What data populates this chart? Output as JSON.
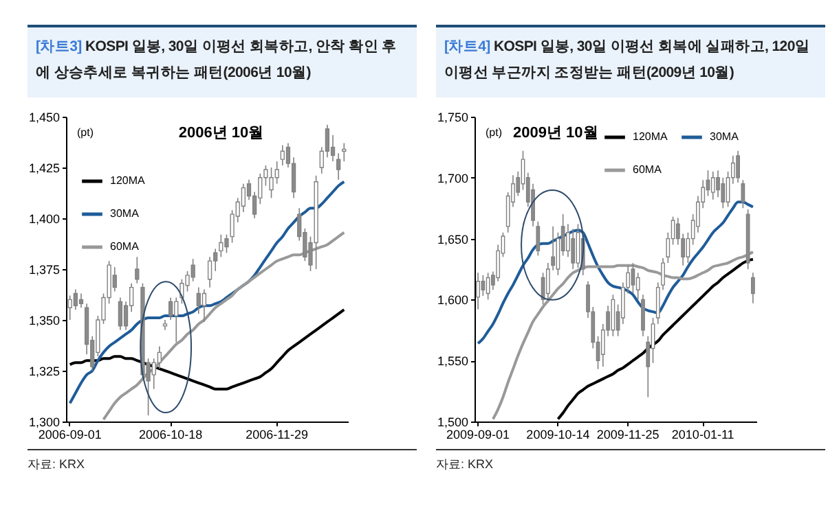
{
  "chart_data": [
    {
      "type": "candlestick",
      "title": "[차트3] KOSPI 일봉, 30일 이평선 회복하고, 안착 확인 후에 상승추세로 복귀하는 패턴(2006년 10월)",
      "ylabel": "(pt)",
      "annotations": [
        "2006년 10월",
        "자료: KRX"
      ],
      "legend": "top left",
      "ylim": [
        1300,
        1450
      ],
      "yticks": [
        {
          "value": 1300,
          "label": "1,300"
        },
        {
          "value": 1325,
          "label": "1,325"
        },
        {
          "value": 1350,
          "label": "1,350"
        },
        {
          "value": 1375,
          "label": "1,375"
        },
        {
          "value": 1400,
          "label": "1,400"
        },
        {
          "value": 1425,
          "label": "1,425"
        },
        {
          "value": 1450,
          "label": "1,450"
        }
      ],
      "categories": [
        "2006-09-01",
        null,
        null,
        null,
        null,
        null,
        null,
        null,
        null,
        null,
        null,
        null,
        null,
        null,
        null,
        null,
        null,
        null,
        "2006-10-18",
        null,
        null,
        null,
        null,
        null,
        null,
        null,
        null,
        null,
        null,
        null,
        null,
        null,
        null,
        null,
        null,
        null,
        null,
        "2006-11-29",
        null,
        null,
        null,
        null,
        null,
        null,
        null,
        null,
        null,
        null,
        null,
        null
      ],
      "ohlc": [
        [
          1356,
          1362,
          1350,
          1360
        ],
        [
          1363,
          1365,
          1355,
          1357
        ],
        [
          1360,
          1363,
          1356,
          1358
        ],
        [
          1356,
          1358,
          1333,
          1338
        ],
        [
          1340,
          1342,
          1325,
          1327
        ],
        [
          1334,
          1352,
          1332,
          1350
        ],
        [
          1350,
          1363,
          1348,
          1361
        ],
        [
          1361,
          1379,
          1358,
          1377
        ],
        [
          1372,
          1376,
          1364,
          1366
        ],
        [
          1359,
          1361,
          1345,
          1347
        ],
        [
          1357,
          1359,
          1345,
          1347
        ],
        [
          1357,
          1368,
          1354,
          1366
        ],
        [
          1375,
          1381,
          1368,
          1370
        ],
        [
          1366,
          1368,
          1321,
          1323
        ],
        [
          1329,
          1331,
          1303,
          1320
        ],
        [
          1323,
          1331,
          1316,
          1329
        ],
        [
          1329,
          1337,
          1326,
          1334
        ],
        [
          1347,
          1350,
          1345,
          1348
        ],
        [
          1359,
          1361,
          1350,
          1352
        ],
        [
          1352,
          1361,
          1339,
          1359
        ],
        [
          1361,
          1370,
          1358,
          1368
        ],
        [
          1367,
          1374,
          1364,
          1372
        ],
        [
          1377,
          1380,
          1369,
          1371
        ],
        [
          1363,
          1366,
          1353,
          1357
        ],
        [
          1357,
          1365,
          1349,
          1363
        ],
        [
          1370,
          1381,
          1366,
          1379
        ],
        [
          1383,
          1385,
          1374,
          1379
        ],
        [
          1384,
          1392,
          1381,
          1388
        ],
        [
          1390,
          1392,
          1383,
          1386
        ],
        [
          1391,
          1404,
          1388,
          1402
        ],
        [
          1401,
          1410,
          1398,
          1408
        ],
        [
          1406,
          1417,
          1403,
          1415
        ],
        [
          1417,
          1419,
          1409,
          1411
        ],
        [
          1411,
          1413,
          1400,
          1402
        ],
        [
          1410,
          1422,
          1407,
          1420
        ],
        [
          1420,
          1426,
          1416,
          1424
        ],
        [
          1414,
          1425,
          1410,
          1420
        ],
        [
          1420,
          1428,
          1417,
          1424
        ],
        [
          1429,
          1436,
          1426,
          1433
        ],
        [
          1435,
          1437,
          1425,
          1427
        ],
        [
          1427,
          1430,
          1410,
          1413
        ],
        [
          1402,
          1405,
          1389,
          1391
        ],
        [
          1393,
          1395,
          1379,
          1381
        ],
        [
          1388,
          1391,
          1374,
          1377
        ],
        [
          1388,
          1421,
          1375,
          1418
        ],
        [
          1425,
          1435,
          1422,
          1433
        ],
        [
          1444,
          1446,
          1430,
          1433
        ],
        [
          1435,
          1441,
          1428,
          1431
        ],
        [
          1429,
          1432,
          1419,
          1424
        ],
        [
          1433,
          1437,
          1428,
          1434
        ]
      ],
      "series": [
        {
          "name": "120MA",
          "type": "line",
          "color": "#000000",
          "values": [
            1328,
            1329,
            1329,
            1330,
            1330,
            1330,
            1331,
            1331,
            1332,
            1332,
            1331,
            1331,
            1330,
            1329,
            1328,
            1327,
            1326,
            1325,
            1324,
            1323,
            1322,
            1321,
            1320,
            1319,
            1318,
            1317,
            1316,
            1316,
            1316,
            1317,
            1318,
            1319,
            1320,
            1321,
            1322,
            1324,
            1326,
            1329,
            1332,
            1335,
            1337,
            1339,
            1341,
            1343,
            1345,
            1347,
            1349,
            1351,
            1353,
            1355
          ]
        },
        {
          "name": "30MA",
          "type": "line",
          "color": "#1f5c99",
          "values": [
            1309,
            1314,
            1319,
            1323,
            1325,
            1330,
            1334,
            1337,
            1339,
            1341,
            1343,
            1345,
            1348,
            1350,
            1351,
            1351,
            1351,
            1352,
            1352,
            1352,
            1352,
            1353,
            1354,
            1356,
            1357,
            1357,
            1358,
            1359,
            1361,
            1363,
            1365,
            1367,
            1369,
            1372,
            1376,
            1380,
            1384,
            1388,
            1391,
            1395,
            1398,
            1401,
            1403,
            1405,
            1405,
            1407,
            1410,
            1413,
            1416,
            1418
          ]
        },
        {
          "name": "60MA",
          "type": "line",
          "color": "#999999",
          "values": [
            null,
            null,
            null,
            null,
            null,
            null,
            1301,
            1305,
            1309,
            1312,
            1314,
            1316,
            1318,
            1321,
            1324,
            1326,
            1329,
            1332,
            1335,
            1338,
            1340,
            1343,
            1345,
            1348,
            1350,
            1353,
            1356,
            1358,
            1360,
            1362,
            1365,
            1367,
            1369,
            1371,
            1373,
            1375,
            1377,
            1379,
            1380,
            1381,
            1382,
            1382,
            1383,
            1384,
            1385,
            1386,
            1387,
            1389,
            1391,
            1393
          ]
        }
      ]
    },
    {
      "type": "candlestick",
      "title": "[차트4] KOSPI 일봉, 30일 이평선 회복에 실패하고, 120일 이평선 부근까지 조정받는 패턴(2009년 10월)",
      "ylabel": "(pt)",
      "annotations": [
        "2009년 10월",
        "자료: KRX"
      ],
      "legend": "top right",
      "ylim": [
        1500,
        1750
      ],
      "yticks": [
        {
          "value": 1500,
          "label": "1,500"
        },
        {
          "value": 1550,
          "label": "1,550"
        },
        {
          "value": 1600,
          "label": "1,600"
        },
        {
          "value": 1650,
          "label": "1,650"
        },
        {
          "value": 1700,
          "label": "1,700"
        },
        {
          "value": 1750,
          "label": "1,750"
        }
      ],
      "categories": [
        "2009-09-01",
        null,
        null,
        null,
        null,
        null,
        null,
        null,
        null,
        null,
        null,
        null,
        null,
        null,
        null,
        null,
        "2009-10-14",
        null,
        null,
        null,
        null,
        null,
        null,
        null,
        null,
        null,
        null,
        null,
        null,
        null,
        "2009-11-25",
        null,
        null,
        null,
        null,
        null,
        null,
        null,
        null,
        null,
        null,
        null,
        null,
        null,
        null,
        "2010-01-11",
        null,
        null,
        null,
        null,
        null,
        null,
        null,
        null,
        null,
        null
      ],
      "ohlc": [
        [
          1602,
          1622,
          1592,
          1615
        ],
        [
          1615,
          1620,
          1603,
          1608
        ],
        [
          1605,
          1622,
          1600,
          1618
        ],
        [
          1620,
          1623,
          1608,
          1612
        ],
        [
          1618,
          1645,
          1615,
          1640
        ],
        [
          1638,
          1655,
          1635,
          1652
        ],
        [
          1660,
          1688,
          1655,
          1685
        ],
        [
          1680,
          1702,
          1676,
          1695
        ],
        [
          1700,
          1705,
          1685,
          1688
        ],
        [
          1695,
          1722,
          1690,
          1715
        ],
        [
          1700,
          1704,
          1676,
          1680
        ],
        [
          1690,
          1695,
          1660,
          1665
        ],
        [
          1660,
          1664,
          1636,
          1640
        ],
        [
          1618,
          1622,
          1596,
          1600
        ],
        [
          1605,
          1630,
          1600,
          1625
        ],
        [
          1635,
          1660,
          1624,
          1628
        ],
        [
          1625,
          1655,
          1620,
          1650
        ],
        [
          1660,
          1670,
          1636,
          1640
        ],
        [
          1640,
          1662,
          1635,
          1655
        ],
        [
          1650,
          1658,
          1625,
          1630
        ],
        [
          1630,
          1662,
          1626,
          1655
        ],
        [
          1650,
          1655,
          1620,
          1625
        ],
        [
          1612,
          1615,
          1585,
          1590
        ],
        [
          1590,
          1594,
          1560,
          1565
        ],
        [
          1565,
          1570,
          1543,
          1550
        ],
        [
          1555,
          1580,
          1545,
          1575
        ],
        [
          1590,
          1595,
          1570,
          1575
        ],
        [
          1575,
          1604,
          1570,
          1600
        ],
        [
          1590,
          1596,
          1570,
          1575
        ],
        [
          1585,
          1614,
          1580,
          1610
        ],
        [
          1610,
          1628,
          1605,
          1622
        ],
        [
          1625,
          1630,
          1605,
          1612
        ],
        [
          1608,
          1622,
          1600,
          1618
        ],
        [
          1600,
          1604,
          1570,
          1575
        ],
        [
          1565,
          1570,
          1520,
          1545
        ],
        [
          1560,
          1585,
          1548,
          1580
        ],
        [
          1585,
          1614,
          1580,
          1610
        ],
        [
          1612,
          1634,
          1608,
          1630
        ],
        [
          1635,
          1655,
          1630,
          1650
        ],
        [
          1650,
          1668,
          1645,
          1665
        ],
        [
          1662,
          1667,
          1645,
          1650
        ],
        [
          1650,
          1654,
          1628,
          1635
        ],
        [
          1635,
          1655,
          1630,
          1650
        ],
        [
          1650,
          1670,
          1645,
          1665
        ],
        [
          1660,
          1685,
          1655,
          1680
        ],
        [
          1680,
          1698,
          1675,
          1692
        ],
        [
          1698,
          1706,
          1685,
          1690
        ],
        [
          1688,
          1705,
          1682,
          1700
        ],
        [
          1700,
          1706,
          1684,
          1690
        ],
        [
          1695,
          1700,
          1675,
          1680
        ],
        [
          1680,
          1705,
          1676,
          1700
        ],
        [
          1700,
          1718,
          1695,
          1712
        ],
        [
          1718,
          1722,
          1696,
          1700
        ],
        [
          1695,
          1698,
          1675,
          1680
        ],
        [
          1670,
          1674,
          1625,
          1630
        ],
        [
          1618,
          1622,
          1597,
          1605
        ]
      ],
      "series": [
        {
          "name": "120MA",
          "type": "line",
          "color": "#000000",
          "values": [
            null,
            null,
            null,
            null,
            null,
            null,
            null,
            null,
            null,
            null,
            null,
            null,
            null,
            null,
            null,
            null,
            1502,
            1507,
            1513,
            1518,
            1523,
            1526,
            1529,
            1531,
            1533,
            1535,
            1537,
            1539,
            1542,
            1544,
            1547,
            1550,
            1553,
            1556,
            1560,
            1563,
            1566,
            1571,
            1575,
            1579,
            1583,
            1587,
            1591,
            1595,
            1599,
            1603,
            1607,
            1611,
            1614,
            1618,
            1621,
            1624,
            1627,
            1630,
            1632,
            1633
          ]
        },
        {
          "name": "30MA",
          "type": "line",
          "color": "#1f5c99",
          "values": [
            1564,
            1568,
            1574,
            1580,
            1588,
            1597,
            1605,
            1612,
            1620,
            1628,
            1634,
            1641,
            1645,
            1646,
            1646,
            1648,
            1650,
            1652,
            1654,
            1656,
            1657,
            1655,
            1646,
            1636,
            1627,
            1620,
            1614,
            1611,
            1610,
            1609,
            1607,
            1604,
            1598,
            1593,
            1591,
            1590,
            1589,
            1595,
            1603,
            1610,
            1615,
            1620,
            1627,
            1633,
            1638,
            1643,
            1649,
            1655,
            1659,
            1663,
            1669,
            1675,
            1680,
            1680,
            1678,
            1676
          ]
        },
        {
          "name": "60MA",
          "type": "line",
          "color": "#999999",
          "values": [
            null,
            null,
            null,
            1502,
            1510,
            1520,
            1532,
            1543,
            1554,
            1564,
            1573,
            1582,
            1588,
            1594,
            1599,
            1604,
            1609,
            1613,
            1618,
            1622,
            1624,
            1626,
            1627,
            1627,
            1627,
            1627,
            1627,
            1627,
            1628,
            1628,
            1628,
            1628,
            1627,
            1626,
            1624,
            1623,
            1622,
            1620,
            1619,
            1618,
            1618,
            1617,
            1617,
            1618,
            1620,
            1622,
            1624,
            1627,
            1628,
            1629,
            1630,
            1632,
            1634,
            1635,
            1637,
            1639
          ]
        }
      ]
    }
  ]
}
